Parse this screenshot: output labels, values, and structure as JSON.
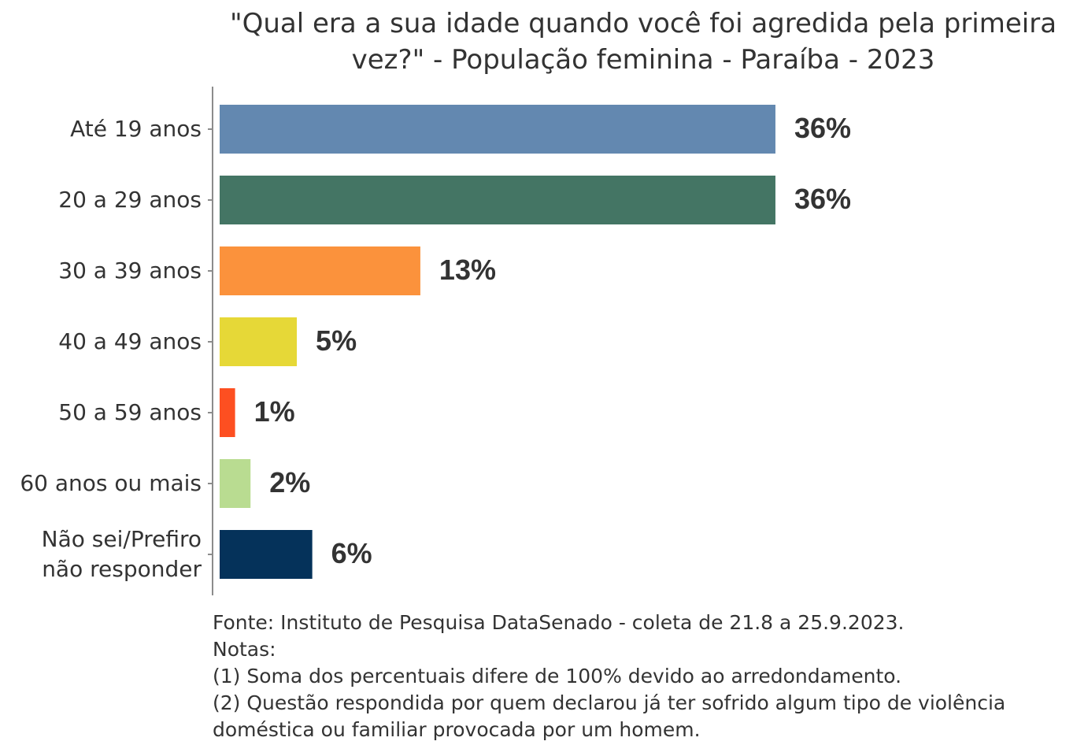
{
  "chart_data": {
    "type": "bar",
    "orientation": "horizontal",
    "title_lines": [
      "\"Qual era a sua idade quando você foi agredida pela primeira",
      "vez?\" - População feminina - Paraíba - 2023"
    ],
    "categories": [
      [
        "Até 19 anos"
      ],
      [
        "20 a 29 anos"
      ],
      [
        "30 a 39 anos"
      ],
      [
        "40 a 49 anos"
      ],
      [
        "50 a 59 anos"
      ],
      [
        "60 anos ou mais"
      ],
      [
        "Não sei/Prefiro",
        "não responder"
      ]
    ],
    "values": [
      36,
      36,
      13,
      5,
      1,
      2,
      6
    ],
    "value_labels": [
      "36%",
      "36%",
      "13%",
      "5%",
      "1%",
      "2%",
      "6%"
    ],
    "colors": [
      "#6388b0",
      "#447564",
      "#fb923c",
      "#e6d837",
      "#fd4f21",
      "#b9dc91",
      "#05325a"
    ],
    "xlim": [
      0,
      40
    ],
    "grid": false
  },
  "footer": {
    "source": "Fonte: Instituto de Pesquisa DataSenado - coleta de 21.8 a 25.9.2023.",
    "notes_heading": "Notas:",
    "note1": "(1) Soma dos percentuais difere de 100% devido ao arredondamento.",
    "note2_line1": "(2) Questão respondida por quem declarou já ter sofrido algum tipo de violência",
    "note2_line2": "doméstica ou familiar provocada por um homem."
  }
}
